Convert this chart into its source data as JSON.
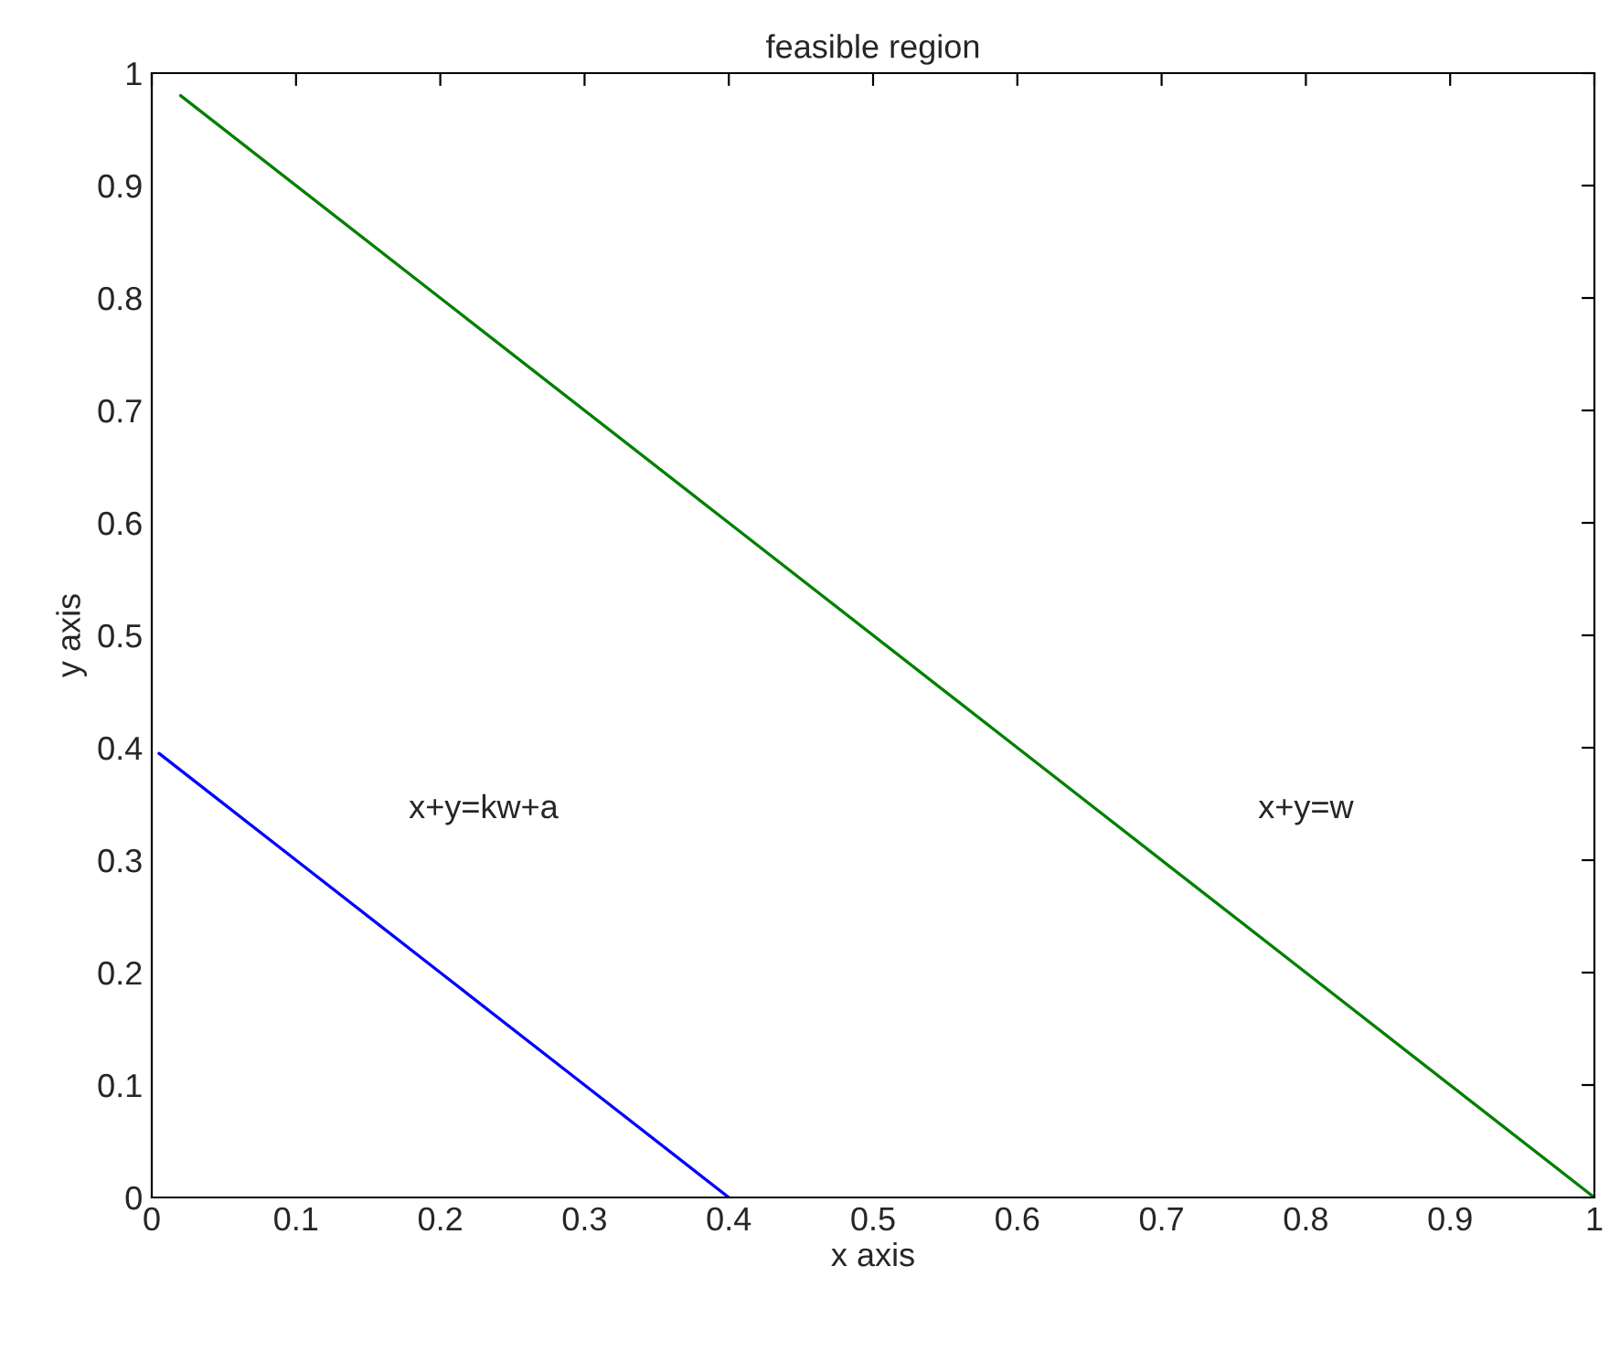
{
  "chart_data": {
    "type": "line",
    "title": "feasible region",
    "xlabel": "x axis",
    "ylabel": "y axis",
    "x": [
      0.02,
      0.2,
      0.4,
      0.6,
      0.8,
      1
    ],
    "series": [
      {
        "color": "#008000",
        "values": [
          0.98,
          0.8,
          0.6,
          0.4,
          0.2,
          0
        ]
      },
      {
        "color": "#0000ff",
        "x": [
          0.005,
          0.1,
          0.2,
          0.3,
          0.4
        ],
        "values": [
          0.395,
          0.3,
          0.2,
          0.1,
          0
        ]
      }
    ],
    "annotations": [
      "x+y=kw+a",
      "x+y=w"
    ],
    "xlim": [
      0,
      1
    ],
    "ylim": [
      0,
      1
    ],
    "xticks": [
      0,
      0.1,
      0.2,
      0.3,
      0.4,
      0.5,
      0.6,
      0.7,
      0.8,
      0.9,
      1
    ],
    "yticks": [
      0,
      0.1,
      0.2,
      0.3,
      0.4,
      0.5,
      0.6,
      0.7,
      0.8,
      0.9,
      1
    ],
    "grid": false,
    "legend": false
  }
}
